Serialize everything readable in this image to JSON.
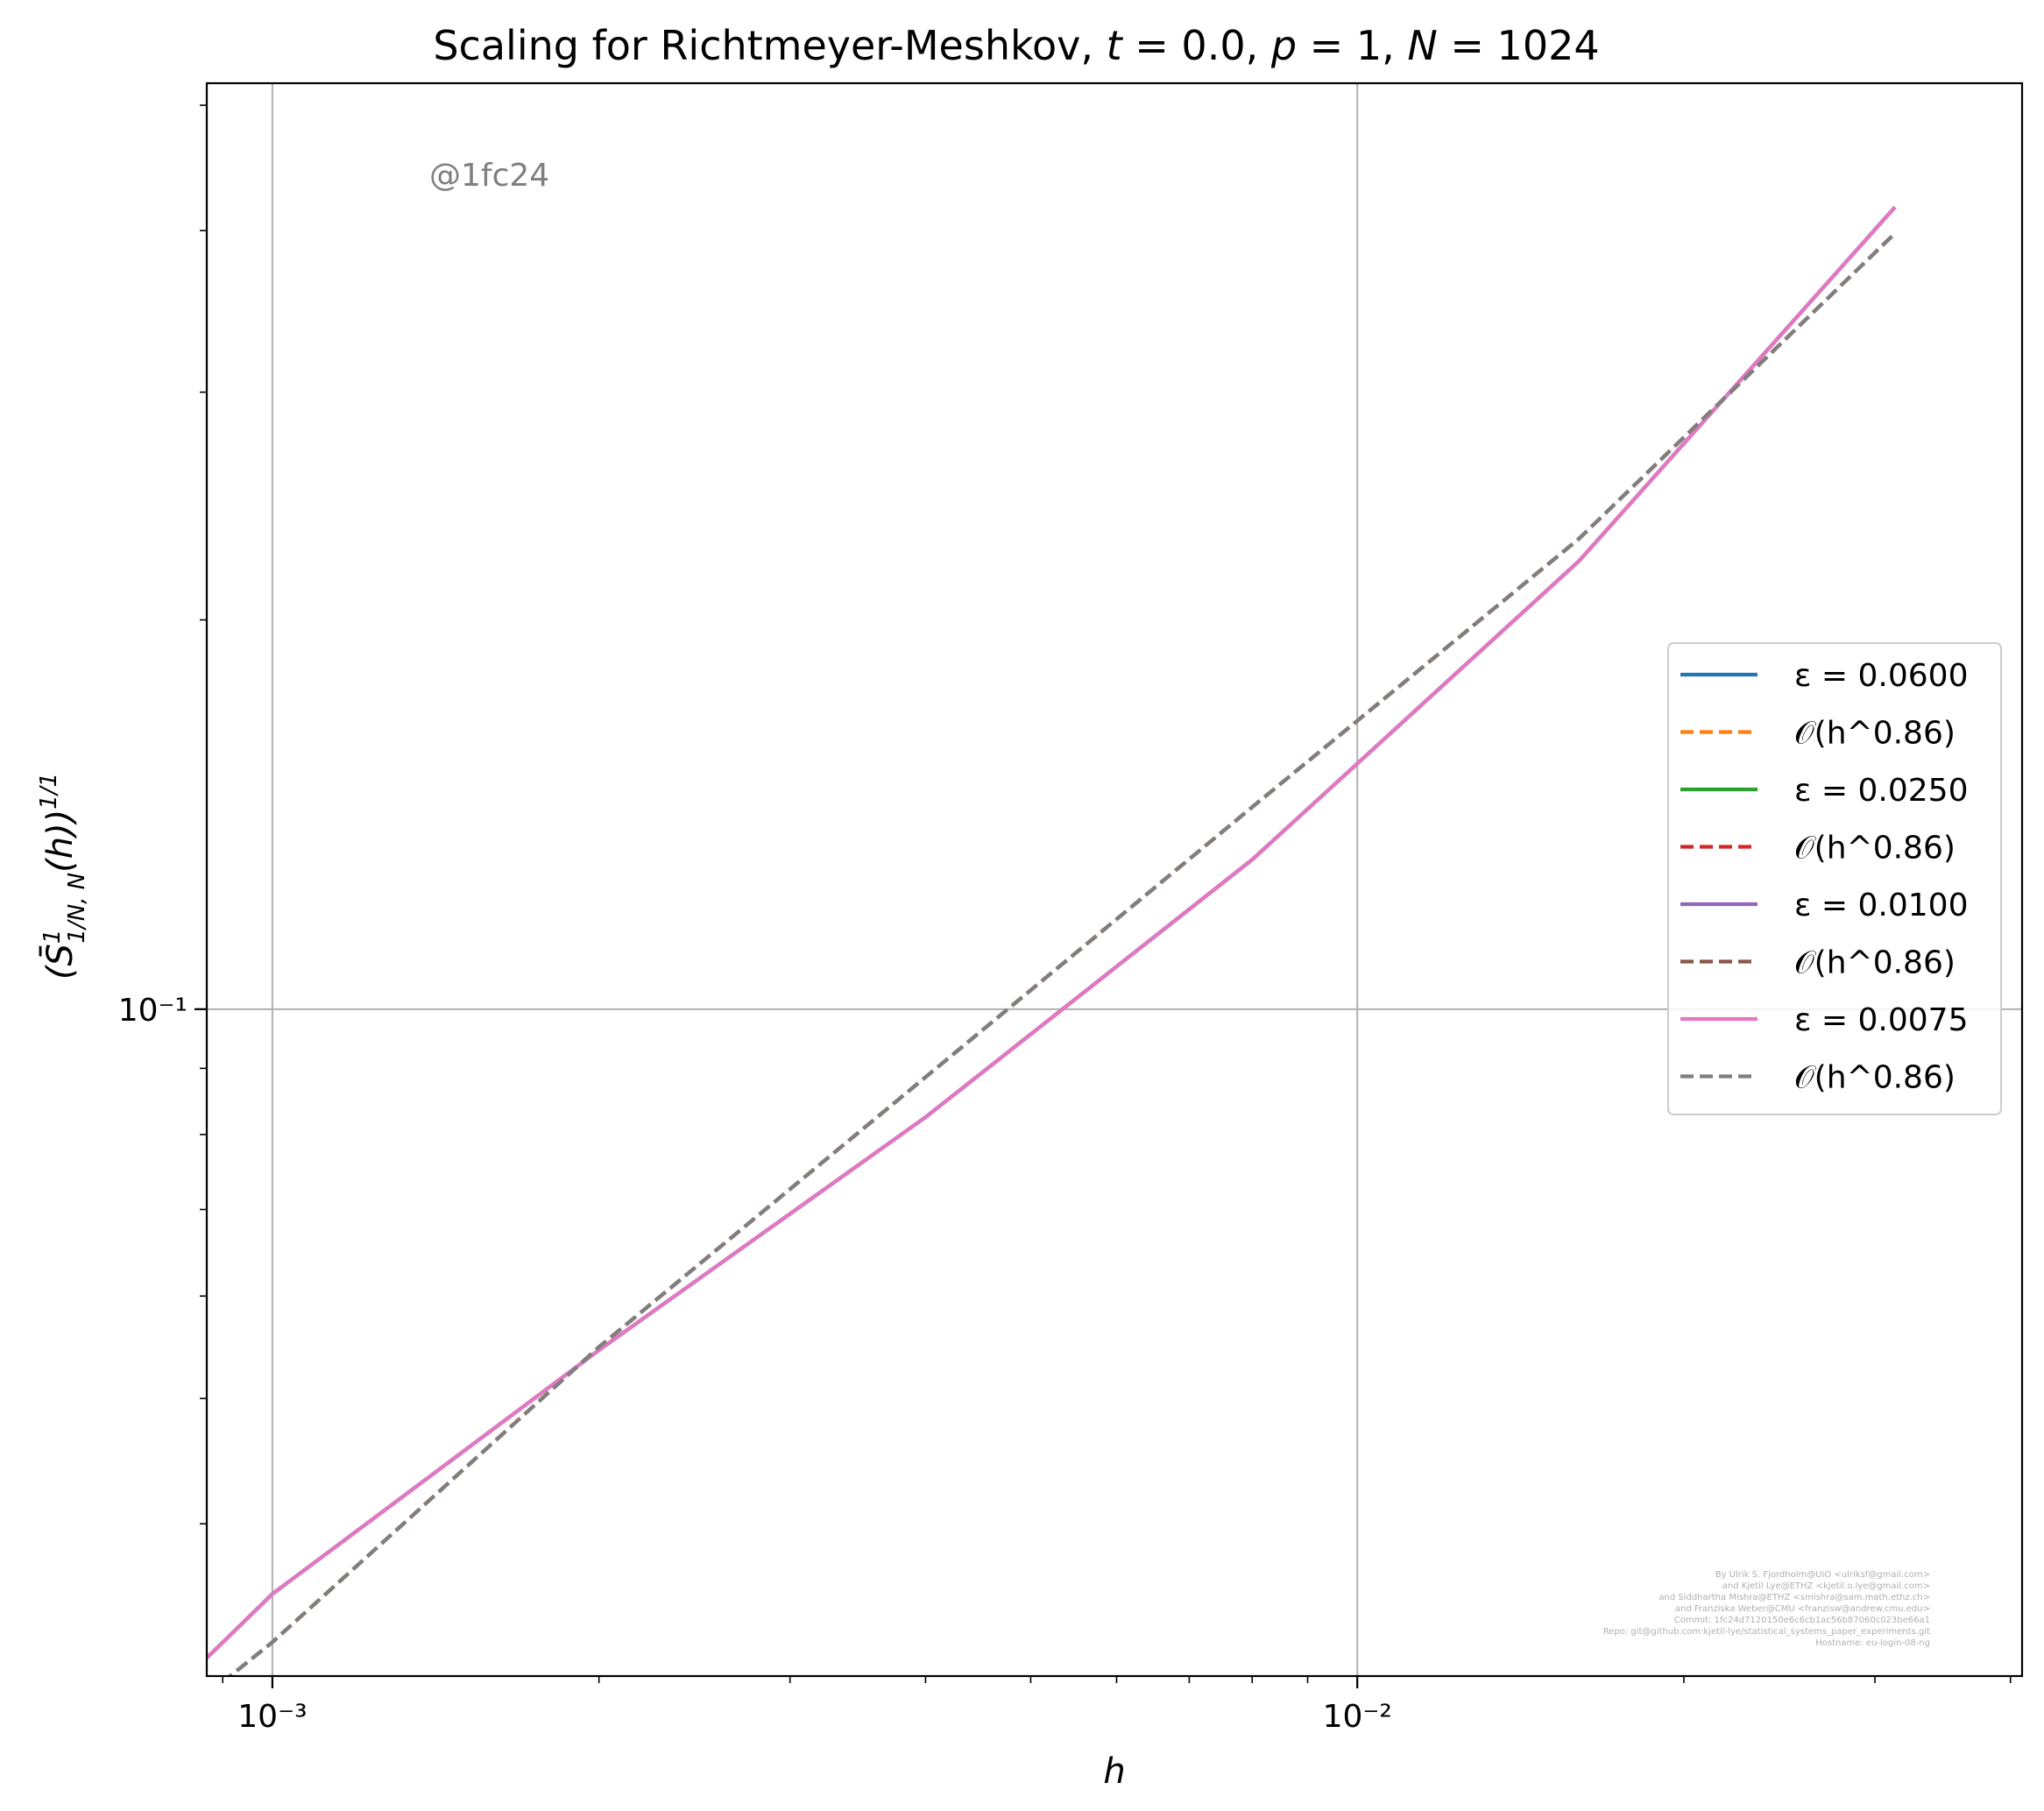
{
  "chart_data": {
    "type": "line",
    "title": "Scaling for Richtmeyer-Meshkov, t = 0.0, p = 1, N = 1024",
    "xlabel": "h",
    "ylabel": "(S̄¹₁/N,N(h))^(1/1)",
    "xscale": "log",
    "yscale": "log",
    "xlim": [
      0.00087,
      0.041
    ],
    "ylim": [
      0.0305,
      0.52
    ],
    "grid": true,
    "legend_position": "center-right",
    "x_ticks": [
      {
        "value": 0.001,
        "label": "10⁻³"
      },
      {
        "value": 0.01,
        "label": "10⁻²"
      }
    ],
    "y_ticks": [
      {
        "value": 0.1,
        "label": "10⁻¹"
      }
    ],
    "x": [
      0.00087,
      0.001,
      0.002,
      0.004,
      0.008,
      0.016,
      0.0313
    ],
    "series": [
      {
        "name": "ε = 0.0600",
        "style": "solid",
        "color": "#1f77b4",
        "y": [
          0.0315,
          0.0353,
          0.0545,
          0.0825,
          0.1305,
          0.222,
          0.417
        ]
      },
      {
        "name": "𝒪(h^0.86)",
        "style": "dashed",
        "color": "#ff7f0e",
        "y": [
          0.0295,
          0.0324,
          0.0548,
          0.0886,
          0.1433,
          0.231,
          0.398
        ]
      },
      {
        "name": "ε = 0.0250",
        "style": "solid",
        "color": "#2ca02c",
        "y": [
          0.0315,
          0.0353,
          0.0545,
          0.0825,
          0.1305,
          0.222,
          0.417
        ]
      },
      {
        "name": "𝒪(h^0.86)",
        "style": "dashed",
        "color": "#d62728",
        "y": [
          0.0295,
          0.0324,
          0.0548,
          0.0886,
          0.1433,
          0.231,
          0.398
        ]
      },
      {
        "name": "ε = 0.0100",
        "style": "solid",
        "color": "#9467bd",
        "y": [
          0.0315,
          0.0353,
          0.0545,
          0.0825,
          0.1305,
          0.222,
          0.417
        ]
      },
      {
        "name": "𝒪(h^0.86)",
        "style": "dashed",
        "color": "#8c564b",
        "y": [
          0.0295,
          0.0324,
          0.0548,
          0.0886,
          0.1433,
          0.231,
          0.398
        ]
      },
      {
        "name": "ε = 0.0075",
        "style": "solid",
        "color": "#e377c2",
        "y": [
          0.0315,
          0.0353,
          0.0545,
          0.0825,
          0.1305,
          0.222,
          0.417
        ]
      },
      {
        "name": "𝒪(h^0.86)",
        "style": "dashed",
        "color": "#7f7f7f",
        "y": [
          0.0295,
          0.0324,
          0.0548,
          0.0886,
          0.1433,
          0.231,
          0.398
        ]
      }
    ],
    "annotation": "@1fc24",
    "credits": [
      "By Ulrik S. Fjordholm@UiO <ulriksf@gmail.com>",
      "and Kjetil Lye@ETHZ <kjetil.o.lye@gmail.com>",
      "and Siddhartha Mishra@ETHZ <smishra@sam.math.ethz.ch>",
      "and Franziska Weber@CMU <franzisw@andrew.cmu.edu>",
      "Commit: 1fc24d7120150e6c6cb1ac56b87060c023be66a1",
      "Repo: git@github.com:kjetil-lye/statistical_systems_paper_experiments.git",
      "Hostname: eu-login-08-ng"
    ]
  }
}
